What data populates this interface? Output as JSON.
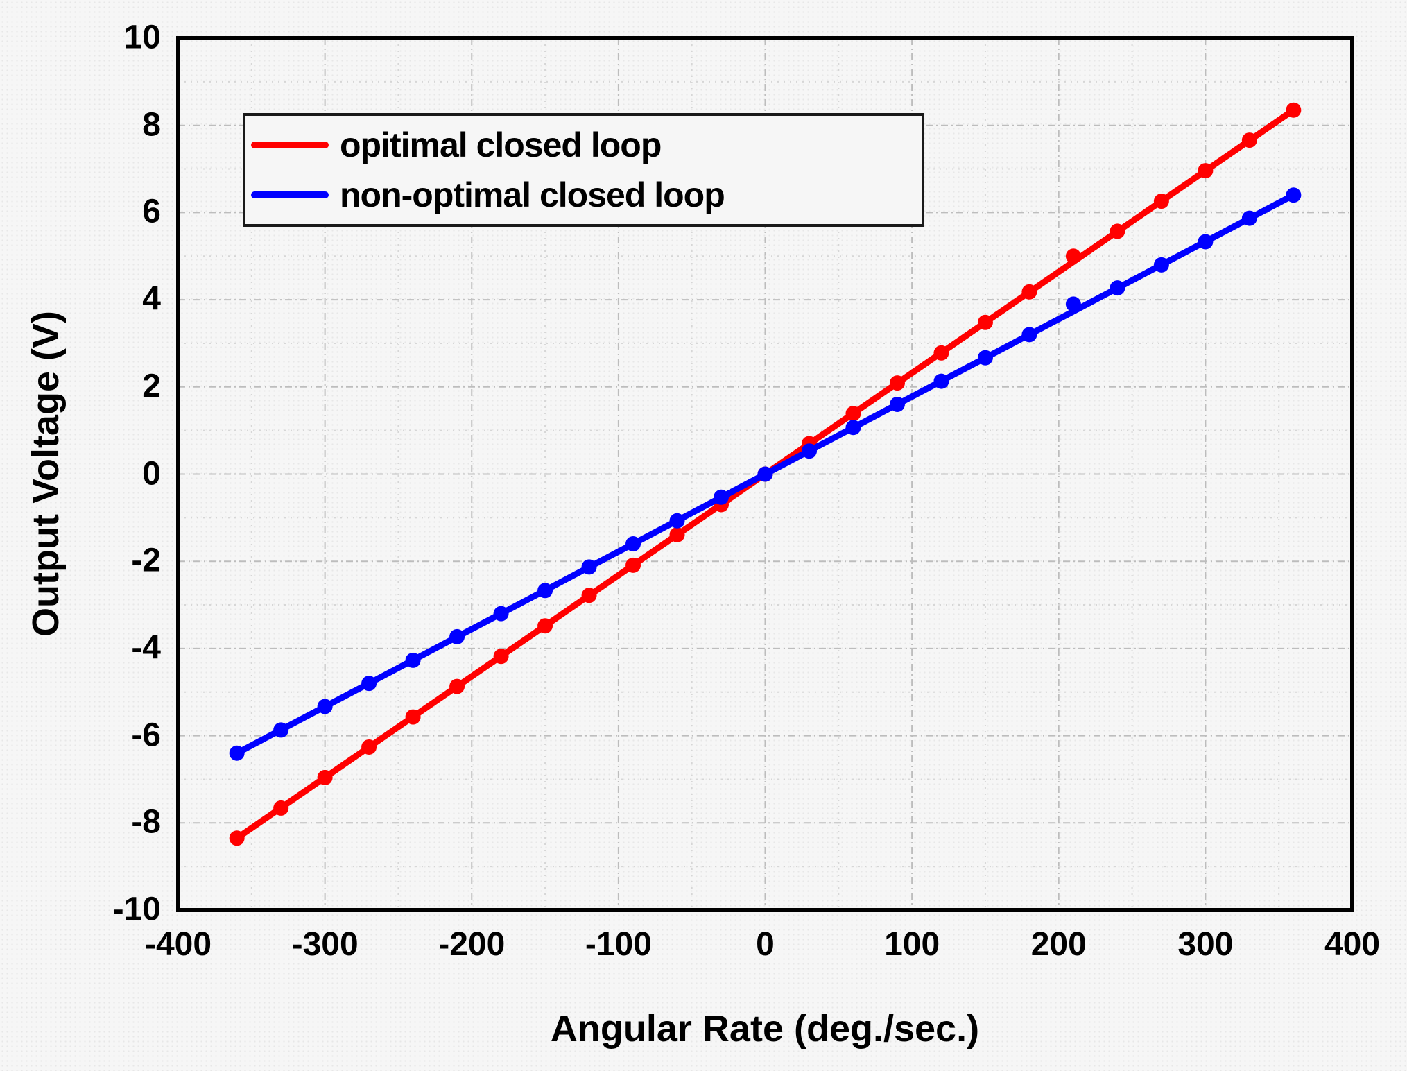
{
  "chart_data": {
    "type": "line",
    "title": "",
    "xlabel": "Angular Rate (deg./sec.)",
    "ylabel": "Output Voltage (V)",
    "xlim": [
      -400,
      400
    ],
    "ylim": [
      -10,
      10
    ],
    "x_ticks": [
      -400,
      -300,
      -200,
      -100,
      0,
      100,
      200,
      300,
      400
    ],
    "y_ticks": [
      10,
      8,
      6,
      4,
      2,
      0,
      -2,
      -4,
      -6,
      -8,
      -10
    ],
    "x_minor_step": 50,
    "y_minor_step": 1,
    "grid": true,
    "legend_position": "top-left",
    "x": [
      -360,
      -330,
      -300,
      -270,
      -240,
      -210,
      -180,
      -150,
      -120,
      -90,
      -60,
      -30,
      0,
      30,
      60,
      90,
      120,
      150,
      180,
      210,
      240,
      270,
      300,
      330,
      360
    ],
    "series": [
      {
        "name": "opitimal closed loop",
        "color": "#ff0000",
        "fit_line": true,
        "values": [
          -8.35,
          -7.66,
          -6.96,
          -6.26,
          -5.57,
          -4.87,
          -4.18,
          -3.48,
          -2.78,
          -2.09,
          -1.39,
          -0.7,
          0.0,
          0.7,
          1.39,
          2.09,
          2.78,
          3.48,
          4.18,
          5.0,
          5.57,
          6.26,
          6.96,
          7.66,
          8.35
        ]
      },
      {
        "name": "non-optimal closed loop",
        "color": "#0000ff",
        "fit_line": true,
        "values": [
          -6.4,
          -5.87,
          -5.33,
          -4.8,
          -4.27,
          -3.73,
          -3.2,
          -2.67,
          -2.13,
          -1.6,
          -1.07,
          -0.53,
          0.0,
          0.53,
          1.07,
          1.6,
          2.13,
          2.67,
          3.2,
          3.9,
          4.27,
          4.8,
          5.33,
          5.87,
          6.4
        ]
      }
    ]
  }
}
